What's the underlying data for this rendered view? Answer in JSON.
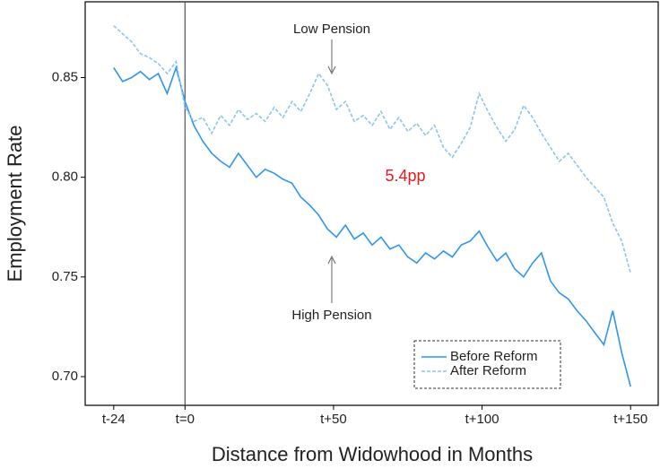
{
  "chart_data": {
    "type": "line",
    "x_label": "Distance from Widowhood in Months",
    "y_label": "Employment Rate",
    "x": [
      -24,
      -21,
      -18,
      -15,
      -12,
      -9,
      -6,
      -3,
      0,
      3,
      6,
      9,
      12,
      15,
      18,
      21,
      24,
      27,
      30,
      33,
      36,
      39,
      42,
      45,
      48,
      51,
      54,
      57,
      60,
      63,
      66,
      69,
      72,
      75,
      78,
      81,
      84,
      87,
      90,
      93,
      96,
      99,
      102,
      105,
      108,
      111,
      114,
      117,
      120,
      123,
      126,
      129,
      132,
      135,
      138,
      141,
      144,
      147,
      150
    ],
    "series": [
      {
        "name": "Before Reform",
        "color": "#2f95f0",
        "style": "solid",
        "values": [
          0.855,
          0.848,
          0.85,
          0.853,
          0.849,
          0.852,
          0.842,
          0.855,
          0.838,
          0.826,
          0.818,
          0.812,
          0.808,
          0.805,
          0.812,
          0.806,
          0.8,
          0.804,
          0.802,
          0.799,
          0.797,
          0.79,
          0.786,
          0.781,
          0.774,
          0.77,
          0.776,
          0.769,
          0.772,
          0.766,
          0.77,
          0.764,
          0.766,
          0.76,
          0.757,
          0.762,
          0.759,
          0.763,
          0.76,
          0.766,
          0.768,
          0.773,
          0.765,
          0.758,
          0.762,
          0.754,
          0.75,
          0.757,
          0.762,
          0.748,
          0.742,
          0.739,
          0.733,
          0.728,
          0.722,
          0.716,
          0.733,
          0.712,
          0.695
        ]
      },
      {
        "name": "After Reform",
        "color": "#8cc4f2",
        "style": "dashed",
        "values": [
          0.876,
          0.872,
          0.868,
          0.862,
          0.86,
          0.857,
          0.852,
          0.858,
          0.835,
          0.828,
          0.83,
          0.822,
          0.831,
          0.826,
          0.834,
          0.829,
          0.832,
          0.828,
          0.835,
          0.83,
          0.838,
          0.833,
          0.842,
          0.852,
          0.846,
          0.834,
          0.838,
          0.828,
          0.831,
          0.826,
          0.833,
          0.824,
          0.83,
          0.823,
          0.827,
          0.821,
          0.826,
          0.815,
          0.81,
          0.817,
          0.825,
          0.842,
          0.833,
          0.825,
          0.818,
          0.824,
          0.836,
          0.83,
          0.822,
          0.815,
          0.808,
          0.812,
          0.806,
          0.8,
          0.795,
          0.79,
          0.777,
          0.768,
          0.752
        ]
      }
    ],
    "xlim": [
      -33.6,
      159.6
    ],
    "ylim": [
      0.6856,
      0.888
    ],
    "xticks": [
      {
        "value": -24,
        "label": "t-24"
      },
      {
        "value": 0,
        "label": "t=0"
      },
      {
        "value": 50,
        "label": "t+50"
      },
      {
        "value": 100,
        "label": "t+100"
      },
      {
        "value": 150,
        "label": "t+150"
      }
    ],
    "yticks": [
      {
        "value": 0.7,
        "label": "0.70"
      },
      0.75,
      {
        "value": 0.8,
        "label": "0.80"
      },
      0.85
    ],
    "vline": 0,
    "annotations": [
      "Low Pension",
      "High Pension",
      "5.4pp"
    ],
    "legend": "bottom-right"
  }
}
